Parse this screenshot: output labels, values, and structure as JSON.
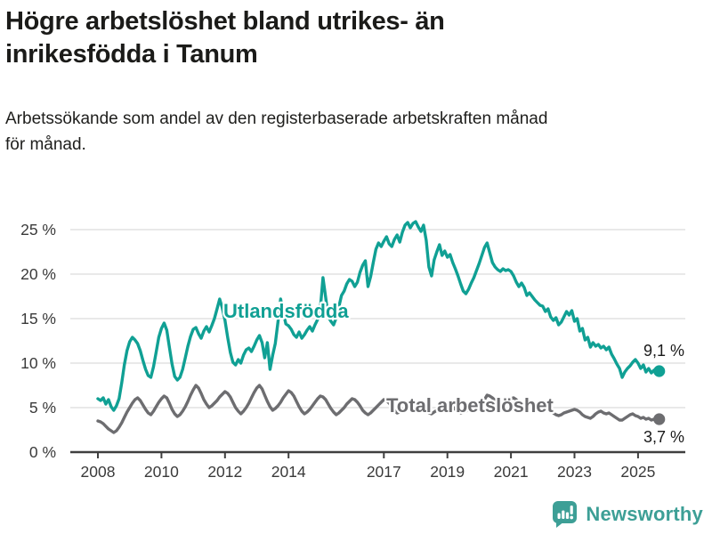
{
  "header": {
    "title_lines": [
      "Högre arbetslöshet bland utrikes- än",
      "inrikesfödda i Tanum"
    ],
    "subtitle_lines": [
      "Arbetssökande som andel av den registerbaserade arbetskraften månad",
      "för månad."
    ]
  },
  "footer": {
    "brand": "Newsworthy",
    "brand_color": "#3d9f96",
    "logo_icon": "bar-chart-speech-bubble"
  },
  "colors": {
    "foreign_born_line": "#10a094",
    "total_line": "#6d6d70",
    "gridline": "#dcdcdc",
    "axis": "#3f3f3f",
    "tick_text": "#3a3a3a",
    "value_label_text": "#1a1a1a"
  },
  "chart_data": {
    "type": "line",
    "title": "Högre arbetslöshet bland utrikes- än inrikesfödda i Tanum",
    "subtitle": "Arbetssökande som andel av den registerbaserade arbetskraften månad för månad.",
    "x_unit": "monthly",
    "x_start_year": 2008,
    "x_end": 2025.667,
    "grid": "horizontal",
    "legend_position": "inline-labels",
    "ylim": [
      0,
      27
    ],
    "y_ticks": [
      0,
      5,
      10,
      15,
      20,
      25
    ],
    "y_tick_labels": [
      "0 %",
      "5 %",
      "10 %",
      "15 %",
      "20 %",
      "25 %"
    ],
    "x_ticks": [
      2008,
      2010,
      2012,
      2014,
      2017,
      2019,
      2021,
      2023,
      2025
    ],
    "x_tick_labels": [
      "2008",
      "2010",
      "2012",
      "2014",
      "2017",
      "2019",
      "2021",
      "2023",
      "2025"
    ],
    "series": [
      {
        "name": "Utlandsfödda",
        "color": "#10a094",
        "end_label": "9,1 %",
        "end_value": 9.1,
        "values": [
          6.0,
          5.8,
          6.1,
          5.4,
          5.9,
          5.1,
          4.7,
          5.2,
          6.0,
          7.8,
          9.8,
          11.4,
          12.4,
          12.9,
          12.6,
          12.2,
          11.4,
          10.3,
          9.3,
          8.6,
          8.4,
          9.6,
          11.2,
          12.9,
          13.9,
          14.5,
          13.7,
          11.8,
          9.9,
          8.5,
          8.1,
          8.4,
          9.3,
          10.6,
          11.9,
          13.0,
          13.8,
          14.0,
          13.3,
          12.8,
          13.6,
          14.1,
          13.5,
          14.2,
          15.0,
          16.1,
          17.2,
          16.2,
          14.8,
          12.9,
          11.2,
          10.1,
          9.8,
          10.4,
          10.0,
          10.9,
          11.5,
          11.7,
          11.3,
          11.9,
          12.6,
          13.1,
          12.3,
          10.6,
          12.3,
          9.3,
          10.9,
          12.2,
          14.6,
          17.2,
          15.7,
          14.4,
          14.2,
          13.8,
          13.2,
          12.9,
          13.5,
          12.8,
          13.2,
          13.7,
          14.1,
          13.6,
          14.3,
          14.9,
          16.1,
          19.6,
          17.4,
          15.2,
          14.7,
          14.3,
          15.1,
          16.3,
          17.6,
          18.1,
          18.9,
          19.4,
          19.2,
          18.6,
          19.1,
          20.2,
          21.0,
          21.5,
          18.6,
          19.7,
          21.3,
          22.8,
          23.5,
          23.1,
          23.7,
          24.2,
          23.4,
          23.1,
          23.9,
          24.4,
          23.6,
          24.7,
          25.5,
          25.8,
          25.2,
          25.7,
          25.9,
          25.3,
          24.8,
          25.5,
          23.8,
          20.8,
          19.8,
          21.6,
          22.5,
          23.3,
          22.1,
          22.6,
          21.9,
          22.2,
          21.3,
          20.6,
          19.8,
          18.9,
          18.1,
          17.8,
          18.3,
          19.0,
          19.6,
          20.4,
          21.2,
          22.1,
          23.0,
          23.5,
          22.4,
          21.3,
          20.8,
          20.5,
          20.3,
          20.6,
          20.4,
          20.5,
          20.3,
          19.8,
          19.1,
          18.6,
          19.0,
          18.5,
          17.6,
          17.9,
          17.5,
          17.1,
          16.8,
          16.5,
          16.4,
          15.8,
          16.1,
          15.2,
          14.8,
          15.1,
          14.3,
          14.6,
          15.2,
          15.8,
          15.4,
          15.9,
          14.7,
          15.0,
          13.6,
          13.9,
          12.6,
          12.9,
          11.8,
          12.3,
          11.9,
          12.1,
          11.7,
          11.9,
          11.5,
          11.8,
          11.0,
          10.5,
          9.9,
          9.4,
          8.4,
          9.0,
          9.4,
          9.7,
          10.1,
          10.4,
          10.0,
          9.4,
          9.8,
          9.0,
          9.4,
          8.9,
          9.2,
          8.9,
          9.1
        ]
      },
      {
        "name": "Total arbetslöshet",
        "color": "#6d6d70",
        "end_label": "3,7 %",
        "end_value": 3.7,
        "values": [
          3.5,
          3.4,
          3.2,
          2.9,
          2.6,
          2.4,
          2.2,
          2.4,
          2.8,
          3.3,
          3.9,
          4.5,
          5.0,
          5.5,
          5.9,
          6.1,
          5.8,
          5.3,
          4.8,
          4.4,
          4.2,
          4.6,
          5.1,
          5.6,
          6.0,
          6.3,
          6.1,
          5.5,
          4.8,
          4.3,
          4.0,
          4.2,
          4.6,
          5.1,
          5.7,
          6.4,
          7.0,
          7.5,
          7.2,
          6.6,
          5.9,
          5.4,
          5.0,
          5.2,
          5.5,
          5.8,
          6.2,
          6.5,
          6.8,
          6.6,
          6.2,
          5.6,
          5.0,
          4.6,
          4.3,
          4.6,
          5.0,
          5.5,
          6.1,
          6.7,
          7.2,
          7.5,
          7.1,
          6.4,
          5.7,
          5.1,
          4.7,
          4.9,
          5.2,
          5.6,
          6.1,
          6.5,
          6.9,
          6.7,
          6.3,
          5.7,
          5.1,
          4.6,
          4.3,
          4.5,
          4.8,
          5.2,
          5.6,
          6.0,
          6.3,
          6.2,
          5.9,
          5.4,
          4.9,
          4.5,
          4.2,
          4.4,
          4.7,
          5.0,
          5.4,
          5.7,
          6.0,
          5.9,
          5.6,
          5.2,
          4.7,
          4.4,
          4.2,
          4.4,
          4.7,
          5.0,
          5.3,
          5.6,
          5.9,
          5.8,
          5.5,
          5.1,
          4.7,
          4.4,
          4.5,
          4.7,
          5.0,
          5.2,
          5.4,
          5.5,
          5.6,
          5.5,
          5.2,
          4.9,
          4.6,
          4.4,
          4.3,
          4.5,
          4.7,
          4.9,
          5.1,
          5.2,
          5.4,
          5.3,
          5.1,
          4.8,
          4.6,
          4.4,
          4.5,
          4.6,
          4.8,
          5.0,
          5.2,
          5.3,
          5.5,
          5.6,
          5.9,
          6.4,
          6.3,
          6.1,
          5.8,
          5.7,
          5.6,
          5.5,
          5.6,
          5.8,
          6.0,
          6.1,
          5.9,
          5.6,
          5.3,
          5.0,
          4.8,
          4.9,
          5.0,
          5.1,
          5.2,
          5.3,
          5.4,
          5.3,
          5.0,
          4.7,
          4.4,
          4.2,
          4.1,
          4.2,
          4.4,
          4.5,
          4.6,
          4.7,
          4.8,
          4.7,
          4.5,
          4.2,
          4.0,
          3.9,
          3.8,
          4.0,
          4.3,
          4.5,
          4.6,
          4.4,
          4.3,
          4.4,
          4.2,
          4.0,
          3.8,
          3.6,
          3.6,
          3.8,
          4.0,
          4.2,
          4.3,
          4.1,
          4.0,
          3.8,
          3.9,
          3.7,
          3.8,
          3.6,
          3.7,
          3.6,
          3.7
        ]
      }
    ]
  }
}
